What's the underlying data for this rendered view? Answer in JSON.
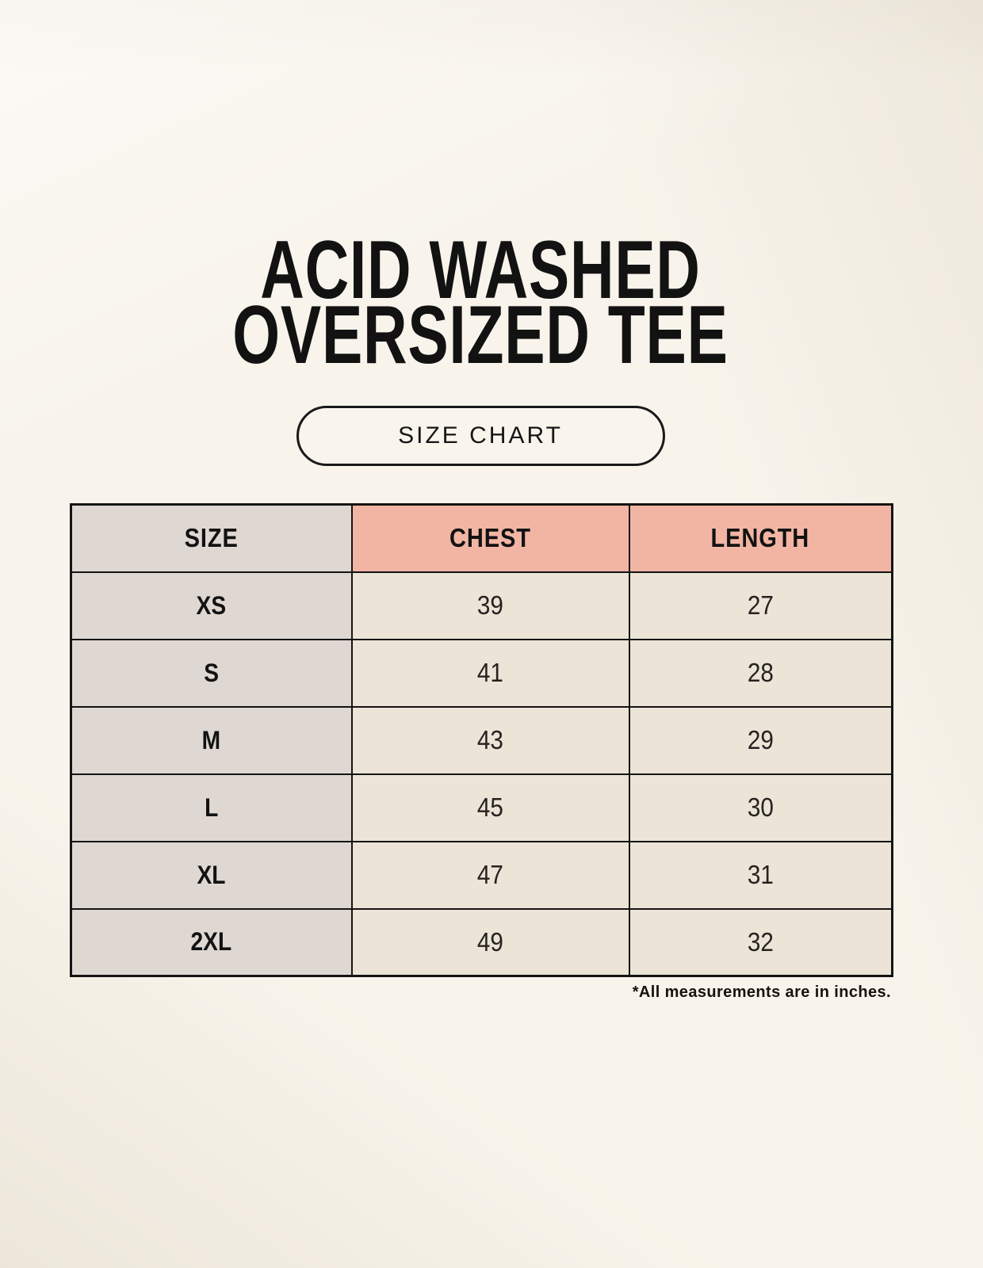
{
  "header": {
    "title_line1": "ACID WASHED",
    "title_line2": "OVERSIZED TEE",
    "badge_label": "SIZE CHART"
  },
  "table": {
    "columns": [
      "SIZE",
      "CHEST",
      "LENGTH"
    ],
    "rows": [
      {
        "size": "XS",
        "chest": "39",
        "length": "27"
      },
      {
        "size": "S",
        "chest": "41",
        "length": "28"
      },
      {
        "size": "M",
        "chest": "43",
        "length": "29"
      },
      {
        "size": "L",
        "chest": "45",
        "length": "30"
      },
      {
        "size": "XL",
        "chest": "47",
        "length": "31"
      },
      {
        "size": "2XL",
        "chest": "49",
        "length": "32"
      }
    ]
  },
  "footnote": "*All measurements are in inches.",
  "colors": {
    "page_background": "#F8F4EB",
    "size_column_bg": "#DFD7D2",
    "header_accent_bg": "#F2B5A4",
    "value_cell_bg": "#EBE4D7",
    "table_border": "#141414",
    "text": "#121212"
  },
  "chart_data": {
    "type": "table",
    "title": "ACID WASHED OVERSIZED TEE — SIZE CHART",
    "columns": [
      "SIZE",
      "CHEST",
      "LENGTH"
    ],
    "rows": [
      [
        "XS",
        39,
        27
      ],
      [
        "S",
        41,
        28
      ],
      [
        "M",
        43,
        29
      ],
      [
        "L",
        45,
        30
      ],
      [
        "XL",
        47,
        31
      ],
      [
        "2XL",
        49,
        32
      ]
    ],
    "units": "inches",
    "note": "*All measurements are in inches."
  }
}
